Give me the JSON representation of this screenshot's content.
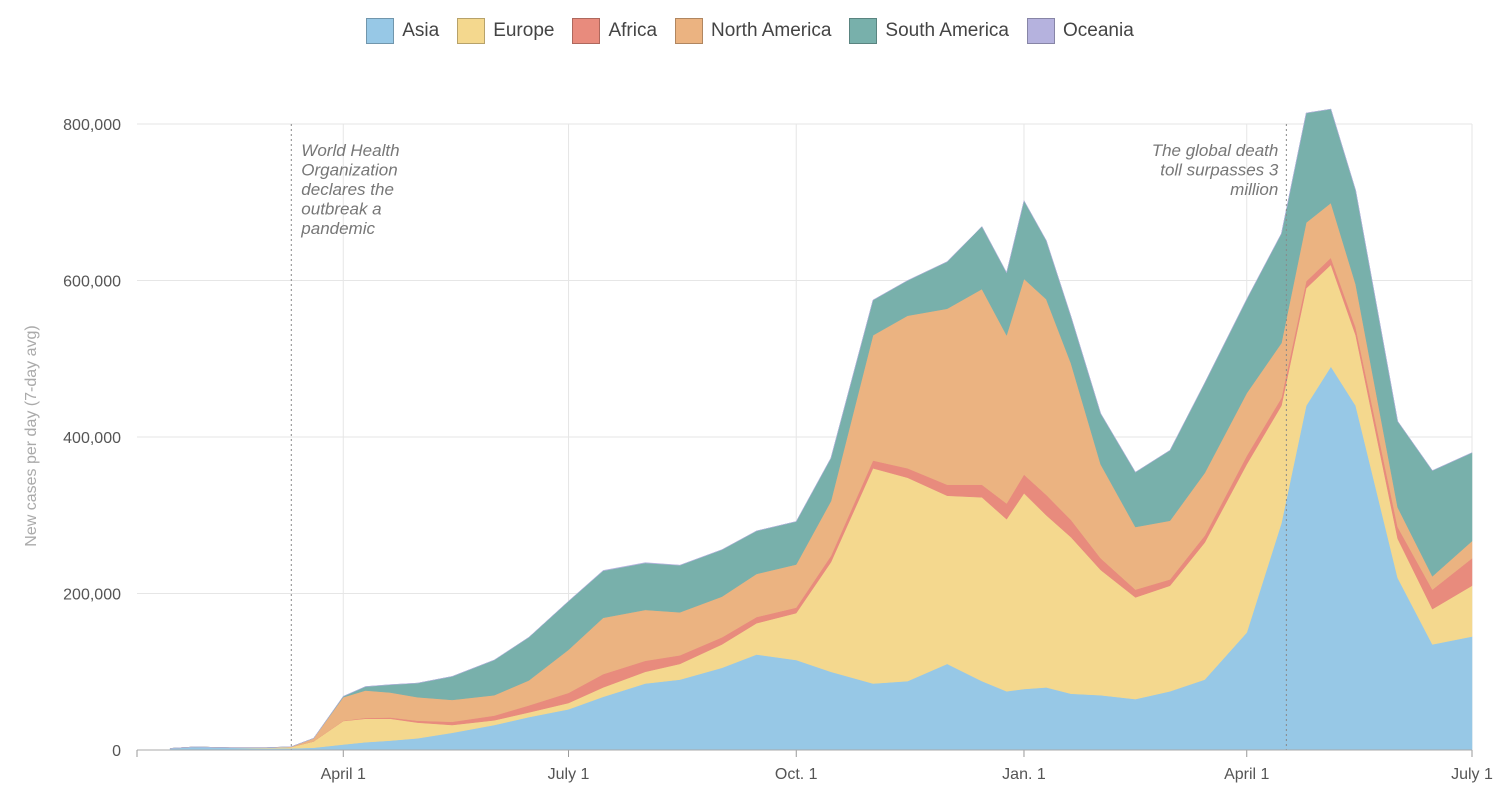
{
  "chart_data": {
    "type": "area",
    "stacked": true,
    "ylabel": "New cases per day (7-day avg)",
    "ylim": [
      0,
      830000
    ],
    "xlim": [
      "2020-01-22",
      "2021-07-01"
    ],
    "y_ticks": [
      {
        "value": 0,
        "label": "0"
      },
      {
        "value": 200000,
        "label": "200,000"
      },
      {
        "value": 400000,
        "label": "400,000"
      },
      {
        "value": 600000,
        "label": "600,000"
      },
      {
        "value": 800000,
        "label": "800,000"
      }
    ],
    "x_ticks": [
      {
        "date": "2020-04-01",
        "label": "April 1"
      },
      {
        "date": "2020-07-01",
        "label": "July 1"
      },
      {
        "date": "2020-10-01",
        "label": "Oct. 1"
      },
      {
        "date": "2021-01-01",
        "label": "Jan. 1"
      },
      {
        "date": "2021-04-01",
        "label": "April 1"
      },
      {
        "date": "2021-07-01",
        "label": "July 1"
      }
    ],
    "grid": true,
    "legend_position": "top-center",
    "x": [
      "2020-01-22",
      "2020-02-01",
      "2020-02-15",
      "2020-03-01",
      "2020-03-11",
      "2020-03-20",
      "2020-04-01",
      "2020-04-10",
      "2020-04-20",
      "2020-05-01",
      "2020-05-15",
      "2020-06-01",
      "2020-06-15",
      "2020-07-01",
      "2020-07-15",
      "2020-08-01",
      "2020-08-15",
      "2020-09-01",
      "2020-09-15",
      "2020-10-01",
      "2020-10-15",
      "2020-11-01",
      "2020-11-15",
      "2020-12-01",
      "2020-12-15",
      "2020-12-25",
      "2021-01-01",
      "2021-01-10",
      "2021-01-20",
      "2021-02-01",
      "2021-02-15",
      "2021-03-01",
      "2021-03-15",
      "2021-04-01",
      "2021-04-15",
      "2021-04-25",
      "2021-05-05",
      "2021-05-15",
      "2021-06-01",
      "2021-06-15",
      "2021-07-01"
    ],
    "series": [
      {
        "name": "Asia",
        "color": "#97c8e6",
        "values": [
          2000,
          4000,
          3000,
          2000,
          2000,
          3000,
          7000,
          10000,
          12000,
          15000,
          22000,
          32000,
          42000,
          52000,
          68000,
          85000,
          90000,
          105000,
          122000,
          115000,
          100000,
          85000,
          88000,
          110000,
          88000,
          75000,
          78000,
          80000,
          72000,
          70000,
          65000,
          75000,
          90000,
          150000,
          290000,
          440000,
          490000,
          440000,
          220000,
          135000,
          145000
        ]
      },
      {
        "name": "Europe",
        "color": "#f4d88e",
        "values": [
          0,
          0,
          0,
          1000,
          2000,
          8000,
          30000,
          30000,
          28000,
          20000,
          10000,
          6000,
          6000,
          8000,
          12000,
          15000,
          20000,
          30000,
          40000,
          60000,
          140000,
          275000,
          260000,
          215000,
          235000,
          220000,
          250000,
          220000,
          200000,
          160000,
          130000,
          135000,
          175000,
          215000,
          150000,
          150000,
          130000,
          90000,
          50000,
          45000,
          65000
        ]
      },
      {
        "name": "Africa",
        "color": "#e88b7d",
        "values": [
          0,
          0,
          0,
          0,
          0,
          0,
          500,
          1000,
          1500,
          2500,
          4000,
          6000,
          9000,
          13000,
          17000,
          14000,
          11000,
          9000,
          8000,
          7000,
          8000,
          10000,
          12000,
          14000,
          16000,
          20000,
          24000,
          26000,
          22000,
          15000,
          10000,
          8000,
          9000,
          11000,
          10000,
          9000,
          9000,
          10000,
          15000,
          25000,
          35000
        ]
      },
      {
        "name": "North America",
        "color": "#ebb381",
        "values": [
          0,
          0,
          0,
          0,
          200,
          4000,
          30000,
          35000,
          32000,
          30000,
          28000,
          26000,
          32000,
          55000,
          72000,
          65000,
          55000,
          52000,
          55000,
          55000,
          70000,
          160000,
          195000,
          225000,
          250000,
          215000,
          250000,
          250000,
          200000,
          120000,
          80000,
          75000,
          80000,
          80000,
          70000,
          75000,
          70000,
          55000,
          25000,
          17000,
          22000
        ]
      },
      {
        "name": "South America",
        "color": "#78b0ab",
        "values": [
          0,
          0,
          0,
          0,
          0,
          0,
          1000,
          5000,
          10000,
          18000,
          30000,
          45000,
          55000,
          62000,
          60000,
          60000,
          60000,
          60000,
          55000,
          55000,
          55000,
          45000,
          45000,
          60000,
          80000,
          80000,
          100000,
          75000,
          60000,
          65000,
          70000,
          90000,
          115000,
          120000,
          140000,
          140000,
          120000,
          120000,
          110000,
          135000,
          113000
        ]
      },
      {
        "name": "Oceania",
        "color": "#b5b2de",
        "values": [
          0,
          0,
          0,
          0,
          0,
          0,
          200,
          200,
          100,
          50,
          50,
          50,
          100,
          300,
          500,
          500,
          300,
          100,
          50,
          50,
          50,
          50,
          50,
          50,
          50,
          50,
          50,
          50,
          50,
          50,
          50,
          50,
          50,
          50,
          50,
          50,
          50,
          50,
          50,
          50,
          50
        ]
      }
    ],
    "annotations": [
      {
        "date": "2020-03-11",
        "text": "World Health Organization declares the outbreak a pandemic",
        "align": "right-of-line",
        "lines": [
          "World Health",
          "Organization",
          "declares the",
          "outbreak a",
          "pandemic"
        ]
      },
      {
        "date": "2021-04-17",
        "text": "The global death toll surpasses 3 million",
        "align": "left-of-line",
        "lines": [
          "The global death",
          "toll surpasses 3",
          "million"
        ]
      }
    ]
  }
}
